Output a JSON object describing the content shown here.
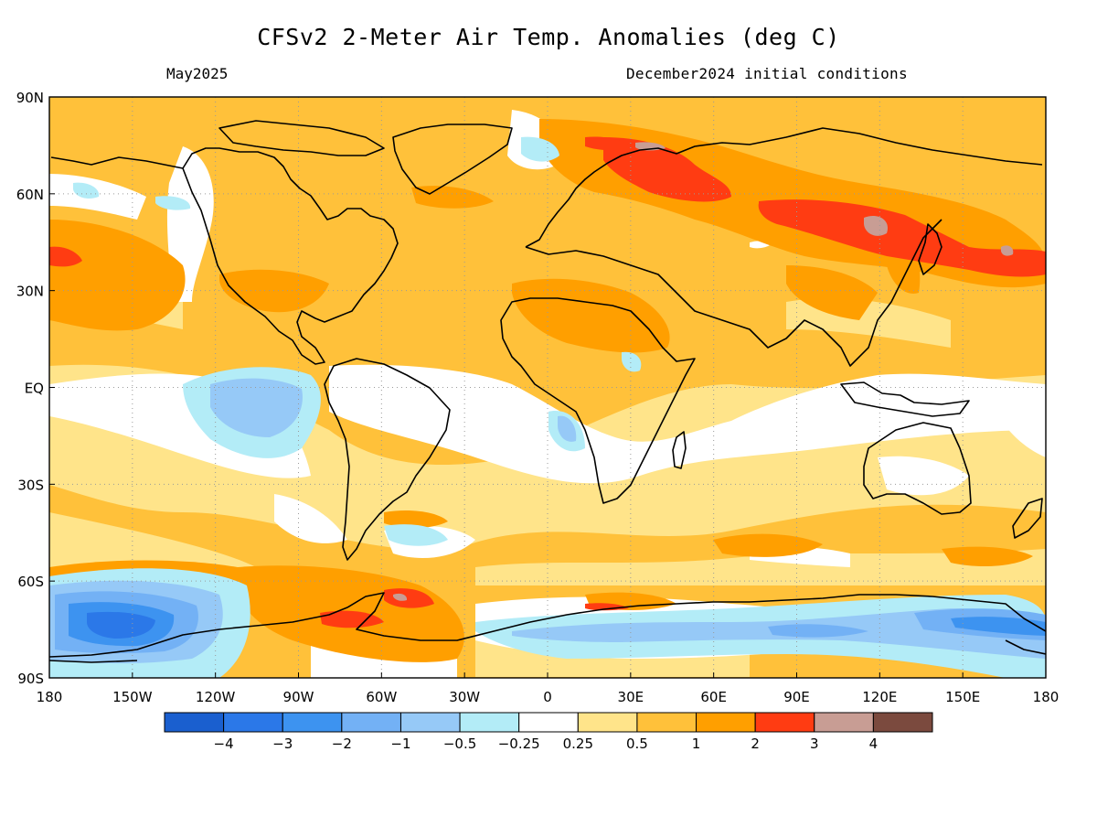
{
  "header": {
    "title": "CFSv2 2-Meter Air Temp. Anomalies (deg C)",
    "valid_month": "May2025",
    "init": "December2024 initial conditions"
  },
  "axes": {
    "lat_labels": [
      "90N",
      "60N",
      "30N",
      "EQ",
      "30S",
      "60S",
      "90S"
    ],
    "lat_values": [
      90,
      60,
      30,
      0,
      -30,
      -60,
      -90
    ],
    "lon_labels": [
      "180",
      "150W",
      "120W",
      "90W",
      "60W",
      "30W",
      "0",
      "30E",
      "60E",
      "90E",
      "120E",
      "150E",
      "180"
    ],
    "lon_values": [
      -180,
      -150,
      -120,
      -90,
      -60,
      -30,
      0,
      30,
      60,
      90,
      120,
      150,
      180
    ]
  },
  "colorbar": {
    "colors": [
      "#1a5fcf",
      "#2b78e8",
      "#3d93f0",
      "#73b1f5",
      "#96c9f7",
      "#b3ecf7",
      "#ffffff",
      "#ffe48a",
      "#ffc13a",
      "#ff9f00",
      "#ff3c12",
      "#c89d94",
      "#7b4a3e"
    ],
    "tick_labels": [
      "−4",
      "−3",
      "−2",
      "−1",
      "−0.5",
      "−0.25",
      "0.25",
      "0.5",
      "1",
      "2",
      "3",
      "4"
    ]
  },
  "colors": {
    "base": "#ffc13a",
    "grid": "#9a9a9a",
    "coast": "#000000"
  }
}
